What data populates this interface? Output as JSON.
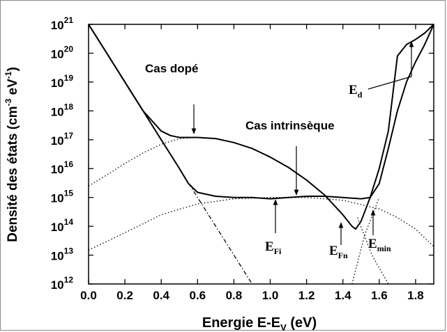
{
  "chart_data": {
    "type": "line",
    "ylog": true,
    "xlabel": [
      "Energie E-E",
      "V",
      " (eV)"
    ],
    "ylabel": [
      "Densité des états (cm",
      "-3",
      " eV",
      "-1",
      ")"
    ],
    "xlim": [
      0,
      1.9
    ],
    "ylim": [
      1000000000000.0,
      1e+21
    ],
    "xticks": [
      {
        "value": 0,
        "label": "0.0"
      },
      {
        "value": 0.2,
        "label": "0.2"
      },
      {
        "value": 0.4,
        "label": "0.4"
      },
      {
        "value": 0.6,
        "label": "0.6"
      },
      {
        "value": 0.8,
        "label": "0.8"
      },
      {
        "value": 1.0,
        "label": "1.0"
      },
      {
        "value": 1.2,
        "label": "1.2"
      },
      {
        "value": 1.4,
        "label": "1.4"
      },
      {
        "value": 1.6,
        "label": "1.6"
      },
      {
        "value": 1.8,
        "label": "1.8"
      }
    ],
    "yticks": [
      {
        "value": 1000000000000.0,
        "label": "10",
        "exponent": "12"
      },
      {
        "value": 10000000000000.0,
        "label": "10",
        "exponent": "13"
      },
      {
        "value": 100000000000000.0,
        "label": "10",
        "exponent": "14"
      },
      {
        "value": 1000000000000000.0,
        "label": "10",
        "exponent": "15"
      },
      {
        "value": 1e+16,
        "label": "10",
        "exponent": "16"
      },
      {
        "value": 1e+17,
        "label": "10",
        "exponent": "17"
      },
      {
        "value": 1e+18,
        "label": "10",
        "exponent": "18"
      },
      {
        "value": 1e+19,
        "label": "10",
        "exponent": "19"
      },
      {
        "value": 1e+20,
        "label": "10",
        "exponent": "20"
      },
      {
        "value": 1e+21,
        "label": "10",
        "exponent": "21"
      }
    ],
    "annotations": [
      {
        "text": "Cas dopé"
      },
      {
        "text": "Cas intrinsèque"
      },
      {
        "text": "E",
        "sub": "d"
      },
      {
        "text": "E",
        "sub": "Fi"
      },
      {
        "text": "E",
        "sub": "Fn"
      },
      {
        "text": "E",
        "sub": "min"
      }
    ],
    "series": [
      {
        "style": "solid",
        "color": "#000000",
        "x": [
          0,
          0.1,
          0.2,
          0.3,
          0.4,
          0.45,
          0.5,
          0.6,
          0.7,
          0.8,
          0.9,
          1.0,
          1.1,
          1.2,
          1.3,
          1.4,
          1.45,
          1.47,
          1.5,
          1.55,
          1.6,
          1.65,
          1.7,
          1.75,
          1.8,
          1.85,
          1.9
        ],
        "values": [
          1e+21,
          1e+20,
          1e+19,
          1e+18,
          2e+17,
          1.4e+17,
          1.2e+17,
          1.2e+17,
          1.1e+17,
          8e+16,
          5e+16,
          2.5e+16,
          1.1e+16,
          4000000000000000.0,
          1200000000000000.0,
          250000000000000.0,
          100000000000000.0,
          80000000000000.0,
          150000000000000.0,
          1000000000000000.0,
          1e+16,
          2e+17,
          8e+19,
          2e+20,
          3e+20,
          5e+20,
          1e+21
        ]
      },
      {
        "style": "solid",
        "color": "#000000",
        "x": [
          0,
          0.1,
          0.2,
          0.3,
          0.4,
          0.5,
          0.55,
          0.6,
          0.7,
          0.8,
          0.9,
          1.0,
          1.1,
          1.2,
          1.3,
          1.4,
          1.5,
          1.55,
          1.6,
          1.65,
          1.7,
          1.75,
          1.8,
          1.85,
          1.9
        ],
        "values": [
          1e+21,
          1e+20,
          1e+19,
          1e+18,
          1e+17,
          1e+16,
          3000000000000000.0,
          1500000000000000.0,
          1100000000000000.0,
          1000000000000000.0,
          1000000000000000.0,
          900000000000000.0,
          1000000000000000.0,
          1100000000000000.0,
          1100000000000000.0,
          1000000000000000.0,
          900000000000000.0,
          1000000000000000.0,
          3000000000000000.0,
          5e+16,
          1e+18,
          1e+19,
          5e+19,
          2e+20,
          1e+21
        ]
      },
      {
        "style": "dashdot",
        "color": "#000000",
        "x": [
          0,
          0.9
        ],
        "values": [
          1e+21,
          1000000000000.0
        ]
      },
      {
        "style": "dotted",
        "color": "#000000",
        "x": [
          0,
          0.1,
          0.2,
          0.3,
          0.4,
          0.5,
          0.6
        ],
        "values": [
          2500000000000000.0,
          6000000000000000.0,
          1.5e+16,
          3.5e+16,
          7e+16,
          1.1e+17,
          1.2e+17
        ]
      },
      {
        "style": "dotted",
        "color": "#000000",
        "x": [
          0,
          0.2,
          0.4,
          0.6,
          0.8,
          1.0,
          1.2,
          1.4,
          1.6,
          1.7,
          1.8,
          1.9
        ],
        "values": [
          15000000000000.0,
          60000000000000.0,
          250000000000000.0,
          600000000000000.0,
          900000000000000.0,
          1000000000000000.0,
          1000000000000000.0,
          800000000000000.0,
          400000000000000.0,
          200000000000000.0,
          80000000000000.0,
          20000000000000.0
        ]
      },
      {
        "style": "dotted",
        "color": "#000000",
        "x": [
          1.45,
          1.52,
          1.6
        ],
        "values": [
          1000000000000.0,
          50000000000000.0,
          1000000000000000.0
        ]
      },
      {
        "style": "dotted",
        "color": "#000000",
        "x": [
          1.48,
          1.56,
          1.65
        ],
        "values": [
          200000000000000.0,
          10000000000000.0,
          1000000000000.0
        ]
      }
    ]
  }
}
